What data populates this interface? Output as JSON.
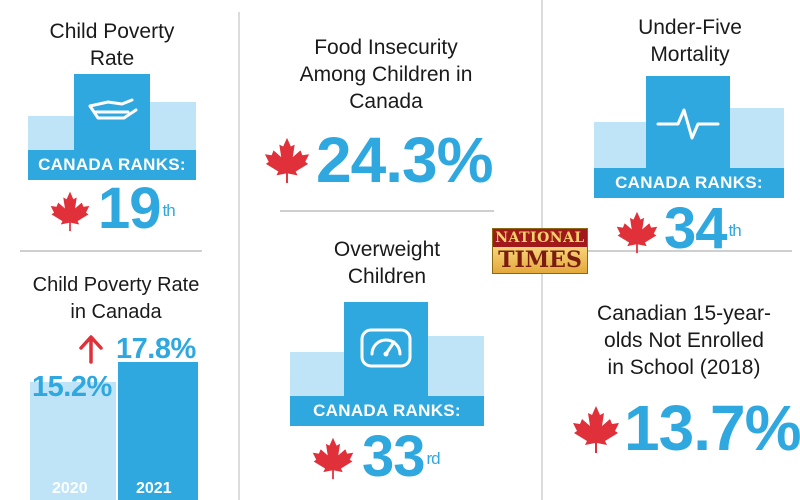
{
  "poverty_rate": {
    "title_line1": "Child Poverty",
    "title_line2": "Rate",
    "banner": "CANADA RANKS:",
    "rank_number": "19",
    "rank_suffix": "th",
    "icon": "hand-holding-icon"
  },
  "poverty_chart": {
    "title_line1": "Child Poverty Rate",
    "title_line2": "in Canada",
    "bars": [
      {
        "year": "2020",
        "value_label": "15.2%",
        "value": 15.2
      },
      {
        "year": "2021",
        "value_label": "17.8%",
        "value": 17.8
      }
    ],
    "trend_icon": "arrow-up-icon",
    "colors": {
      "light": "#bfe4f7",
      "dark": "#2fa8e0",
      "arrow": "#e0303a"
    }
  },
  "food_insecurity": {
    "title_line1": "Food Insecurity",
    "title_line2": "Among Children in",
    "title_line3": "Canada",
    "value": "24.3%",
    "icon": "maple-leaf-icon"
  },
  "overweight": {
    "title_line1": "Overweight",
    "title_line2": "Children",
    "banner": "CANADA RANKS:",
    "rank_number": "33",
    "rank_suffix": "rd",
    "icon": "scale-gauge-icon"
  },
  "mortality": {
    "title_line1": "Under-Five",
    "title_line2": "Mortality",
    "banner": "CANADA RANKS:",
    "rank_number": "34",
    "rank_suffix": "th",
    "icon": "heartbeat-icon"
  },
  "not_enrolled": {
    "title_line1": "Canadian 15-year-",
    "title_line2": "olds Not Enrolled",
    "title_line3": "in School (2018)",
    "value": "13.7%",
    "icon": "maple-leaf-icon"
  },
  "watermark": {
    "line1": "NATIONAL",
    "line2": "TIMES"
  },
  "colors": {
    "accent": "#2fa8e0",
    "accent_light": "#bfe4f7",
    "maple_red": "#e0303a"
  }
}
